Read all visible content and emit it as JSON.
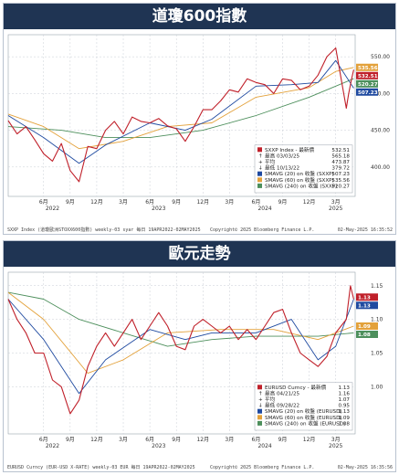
{
  "chart_data": [
    {
      "type": "line",
      "title": "道瓊600指數",
      "period": "weekly",
      "x_range": [
        "2022-02",
        "2025-04"
      ],
      "ylim": [
        360,
        580
      ],
      "yticks": [
        400,
        450,
        500,
        550
      ],
      "x_month_labels": [
        {
          "label": "6月",
          "date": "2022-06"
        },
        {
          "label": "9月",
          "date": "2022-09"
        },
        {
          "label": "12月",
          "date": "2022-12"
        },
        {
          "label": "3月",
          "date": "2023-03"
        },
        {
          "label": "6月",
          "date": "2023-06"
        },
        {
          "label": "9月",
          "date": "2023-09"
        },
        {
          "label": "12月",
          "date": "2023-12"
        },
        {
          "label": "3月",
          "date": "2024-03"
        },
        {
          "label": "6月",
          "date": "2024-06"
        },
        {
          "label": "9月",
          "date": "2024-09"
        },
        {
          "label": "12月",
          "date": "2024-12"
        },
        {
          "label": "3月",
          "date": "2025-03"
        }
      ],
      "x_year_labels": [
        {
          "label": "2022",
          "date": "2022-07"
        },
        {
          "label": "2023",
          "date": "2023-07"
        },
        {
          "label": "2024",
          "date": "2024-07"
        },
        {
          "label": "2025",
          "date": "2025-03"
        }
      ],
      "series": [
        {
          "name": "SXXP Index - 最新價",
          "color": "#c0202a",
          "points": [
            [
              "2022-02",
              463
            ],
            [
              "2022-03",
              445
            ],
            [
              "2022-04",
              455
            ],
            [
              "2022-05",
              437
            ],
            [
              "2022-06",
              418
            ],
            [
              "2022-07",
              408
            ],
            [
              "2022-08",
              432
            ],
            [
              "2022-09",
              395
            ],
            [
              "2022-10",
              380
            ],
            [
              "2022-11",
              428
            ],
            [
              "2022-12",
              425
            ],
            [
              "2023-01",
              450
            ],
            [
              "2023-02",
              462
            ],
            [
              "2023-03",
              445
            ],
            [
              "2023-04",
              468
            ],
            [
              "2023-05",
              462
            ],
            [
              "2023-06",
              460
            ],
            [
              "2023-07",
              466
            ],
            [
              "2023-08",
              456
            ],
            [
              "2023-09",
              452
            ],
            [
              "2023-10",
              435
            ],
            [
              "2023-11",
              455
            ],
            [
              "2023-12",
              478
            ],
            [
              "2024-01",
              478
            ],
            [
              "2024-02",
              490
            ],
            [
              "2024-03",
              505
            ],
            [
              "2024-04",
              502
            ],
            [
              "2024-05",
              520
            ],
            [
              "2024-06",
              515
            ],
            [
              "2024-07",
              512
            ],
            [
              "2024-08",
              500
            ],
            [
              "2024-09",
              520
            ],
            [
              "2024-10",
              518
            ],
            [
              "2024-11",
              505
            ],
            [
              "2024-12",
              510
            ],
            [
              "2025-01",
              525
            ],
            [
              "2025-02",
              550
            ],
            [
              "2025-03",
              562
            ],
            [
              "2025-04-07",
              480
            ],
            [
              "2025-04-15",
              500
            ],
            [
              "2025-04-25",
              520
            ],
            [
              "2025-05-02",
              532.51
            ]
          ]
        },
        {
          "name": "SMAVG (20) on 收盤 (SXXP)",
          "color": "#1f4aa0",
          "points": [
            [
              "2022-02",
              470
            ],
            [
              "2022-06",
              440
            ],
            [
              "2022-10",
              405
            ],
            [
              "2023-01",
              430
            ],
            [
              "2023-06",
              460
            ],
            [
              "2023-10",
              450
            ],
            [
              "2024-01",
              465
            ],
            [
              "2024-06",
              510
            ],
            [
              "2024-10",
              512
            ],
            [
              "2025-01",
              515
            ],
            [
              "2025-03",
              545
            ],
            [
              "2025-05-02",
              507.23
            ]
          ]
        },
        {
          "name": "SMAVG (60) on 收盤 (SXXP)",
          "color": "#e3a13a",
          "points": [
            [
              "2022-02",
              472
            ],
            [
              "2022-06",
              455
            ],
            [
              "2022-10",
              425
            ],
            [
              "2023-03",
              435
            ],
            [
              "2023-08",
              455
            ],
            [
              "2024-01",
              460
            ],
            [
              "2024-06",
              495
            ],
            [
              "2024-12",
              508
            ],
            [
              "2025-03",
              530
            ],
            [
              "2025-05-02",
              535.56
            ]
          ]
        },
        {
          "name": "SMAVG (240) on 收盤 (SXXP)",
          "color": "#4d8f5c",
          "points": [
            [
              "2022-02",
              455
            ],
            [
              "2022-08",
              450
            ],
            [
              "2023-01",
              440
            ],
            [
              "2023-06",
              440
            ],
            [
              "2023-12",
              450
            ],
            [
              "2024-06",
              470
            ],
            [
              "2024-12",
              495
            ],
            [
              "2025-05-02",
              520.27
            ]
          ]
        }
      ],
      "legend": {
        "placement": "bottom-right",
        "rows": [
          {
            "label": "SXXP Index - 最新價",
            "value": "532.51",
            "color": "#c0202a"
          },
          {
            "label": "最高 03/03/25",
            "value": "565.18",
            "symbol": "↑"
          },
          {
            "label": "平均",
            "value": "473.87",
            "symbol": "+"
          },
          {
            "label": "最低 10/13/22",
            "value": "379.72",
            "symbol": "↓"
          },
          {
            "label": "SMAVG (20)  on 收盤 (SXXP)",
            "value": "507.23",
            "color": "#1f4aa0"
          },
          {
            "label": "SMAVG (60)  on 收盤 (SXXP)",
            "value": "535.56",
            "color": "#e3a13a"
          },
          {
            "label": "SMAVG (240) on 收盤 (SXXP)",
            "value": "520.27",
            "color": "#4d8f5c"
          }
        ]
      },
      "value_tags": [
        {
          "value": "535.56",
          "y": 535.56,
          "color": "#e3a13a"
        },
        {
          "value": "532.51",
          "y": 532.51,
          "color": "#c0202a"
        },
        {
          "value": "520.27",
          "y": 520.27,
          "color": "#4d8f5c"
        },
        {
          "value": "507.23",
          "y": 507.23,
          "color": "#1f4aa0"
        }
      ],
      "footer_left": "SXXP Index (道瓊歐洲STOXX600指數) weekly-03 syar 每日 19APR2022-02MAY2025",
      "footer_mid": "Copyright© 2025 Bloomberg Finance L.P.",
      "footer_right": "02-May-2025 16:35:52"
    },
    {
      "type": "line",
      "title": "歐元走勢",
      "period": "weekly",
      "x_range": [
        "2022-02",
        "2025-04"
      ],
      "ylim": [
        0.93,
        1.17
      ],
      "yticks": [
        1.0,
        1.05,
        1.1,
        1.15
      ],
      "ytick_labels": [
        "1.00",
        "1.05",
        "1.10",
        "1.15"
      ],
      "x_month_labels": [
        {
          "label": "6月",
          "date": "2022-06"
        },
        {
          "label": "9月",
          "date": "2022-09"
        },
        {
          "label": "12月",
          "date": "2022-12"
        },
        {
          "label": "3月",
          "date": "2023-03"
        },
        {
          "label": "6月",
          "date": "2023-06"
        },
        {
          "label": "9月",
          "date": "2023-09"
        },
        {
          "label": "12月",
          "date": "2023-12"
        },
        {
          "label": "3月",
          "date": "2024-03"
        },
        {
          "label": "6月",
          "date": "2024-06"
        },
        {
          "label": "9月",
          "date": "2024-09"
        },
        {
          "label": "12月",
          "date": "2024-12"
        },
        {
          "label": "3月",
          "date": "2025-03"
        }
      ],
      "x_year_labels": [
        {
          "label": "2022",
          "date": "2022-07"
        },
        {
          "label": "2023",
          "date": "2023-07"
        },
        {
          "label": "2024",
          "date": "2024-07"
        },
        {
          "label": "2025",
          "date": "2025-03"
        }
      ],
      "series": [
        {
          "name": "EURUSD Curncy - 最新價",
          "color": "#c0202a",
          "points": [
            [
              "2022-02",
              1.13
            ],
            [
              "2022-03",
              1.1
            ],
            [
              "2022-04",
              1.08
            ],
            [
              "2022-05",
              1.05
            ],
            [
              "2022-06",
              1.05
            ],
            [
              "2022-07",
              1.01
            ],
            [
              "2022-08",
              1.0
            ],
            [
              "2022-09",
              0.96
            ],
            [
              "2022-10",
              0.98
            ],
            [
              "2022-11",
              1.03
            ],
            [
              "2022-12",
              1.06
            ],
            [
              "2023-01",
              1.08
            ],
            [
              "2023-02",
              1.06
            ],
            [
              "2023-03",
              1.08
            ],
            [
              "2023-04",
              1.1
            ],
            [
              "2023-05",
              1.07
            ],
            [
              "2023-06",
              1.09
            ],
            [
              "2023-07",
              1.11
            ],
            [
              "2023-08",
              1.09
            ],
            [
              "2023-09",
              1.06
            ],
            [
              "2023-10",
              1.055
            ],
            [
              "2023-11",
              1.09
            ],
            [
              "2023-12",
              1.1
            ],
            [
              "2024-01",
              1.09
            ],
            [
              "2024-02",
              1.08
            ],
            [
              "2024-03",
              1.09
            ],
            [
              "2024-04",
              1.07
            ],
            [
              "2024-05",
              1.085
            ],
            [
              "2024-06",
              1.07
            ],
            [
              "2024-07",
              1.09
            ],
            [
              "2024-08",
              1.11
            ],
            [
              "2024-09",
              1.115
            ],
            [
              "2024-10",
              1.08
            ],
            [
              "2024-11",
              1.05
            ],
            [
              "2024-12",
              1.04
            ],
            [
              "2025-01",
              1.03
            ],
            [
              "2025-02",
              1.045
            ],
            [
              "2025-03",
              1.08
            ],
            [
              "2025-04-07",
              1.1
            ],
            [
              "2025-04-21",
              1.15
            ],
            [
              "2025-05-02",
              1.13
            ]
          ]
        },
        {
          "name": "SMAVG (20) on 收盤 (EURUSD)",
          "color": "#1f4aa0",
          "points": [
            [
              "2022-02",
              1.13
            ],
            [
              "2022-06",
              1.07
            ],
            [
              "2022-10",
              0.99
            ],
            [
              "2023-01",
              1.04
            ],
            [
              "2023-06",
              1.085
            ],
            [
              "2023-10",
              1.07
            ],
            [
              "2024-01",
              1.08
            ],
            [
              "2024-06",
              1.08
            ],
            [
              "2024-10",
              1.1
            ],
            [
              "2025-01",
              1.04
            ],
            [
              "2025-03",
              1.06
            ],
            [
              "2025-05-02",
              1.13
            ]
          ]
        },
        {
          "name": "SMAVG (60) on 收盤 (EURUSD)",
          "color": "#e3a13a",
          "points": [
            [
              "2022-02",
              1.14
            ],
            [
              "2022-06",
              1.1
            ],
            [
              "2022-11",
              1.02
            ],
            [
              "2023-03",
              1.04
            ],
            [
              "2023-08",
              1.08
            ],
            [
              "2024-02",
              1.085
            ],
            [
              "2024-08",
              1.085
            ],
            [
              "2025-01",
              1.07
            ],
            [
              "2025-05-02",
              1.09
            ]
          ]
        },
        {
          "name": "SMAVG (240) on 收盤 (EURUSD)",
          "color": "#4d8f5c",
          "points": [
            [
              "2022-02",
              1.14
            ],
            [
              "2022-06",
              1.13
            ],
            [
              "2022-10",
              1.1
            ],
            [
              "2023-03",
              1.08
            ],
            [
              "2023-08",
              1.06
            ],
            [
              "2024-01",
              1.07
            ],
            [
              "2024-06",
              1.075
            ],
            [
              "2025-01",
              1.075
            ],
            [
              "2025-05-02",
              1.08
            ]
          ]
        }
      ],
      "legend": {
        "placement": "bottom-right",
        "rows": [
          {
            "label": "EURUSD Curncy - 最新價",
            "value": "1.13",
            "color": "#c0202a"
          },
          {
            "label": "最高 04/21/25",
            "value": "1.16",
            "symbol": "↑"
          },
          {
            "label": "平均",
            "value": "1.07",
            "symbol": "+"
          },
          {
            "label": "最低 09/28/22",
            "value": "0.95",
            "symbol": "↓"
          },
          {
            "label": "SMAVG (20)  on 收盤 (EURUSD)",
            "value": "1.13",
            "color": "#1f4aa0"
          },
          {
            "label": "SMAVG (60)  on 收盤 (EURUSD)",
            "value": "1.09",
            "color": "#e3a13a"
          },
          {
            "label": "SMAVG (240) on 收盤 (EURUSD)",
            "value": "1.08",
            "color": "#4d8f5c"
          }
        ]
      },
      "value_tags": [
        {
          "value": "1.13",
          "y": 1.133,
          "color": "#c0202a"
        },
        {
          "value": "1.13",
          "y": 1.127,
          "color": "#1f4aa0"
        },
        {
          "value": "1.09",
          "y": 1.09,
          "color": "#e3a13a"
        },
        {
          "value": "1.08",
          "y": 1.08,
          "color": "#4d8f5c"
        }
      ],
      "footer_left": "EURUSD Curncy (EUR-USD X-RATE) weekly-03 EUR 每日 19APR2022-02MAY2025",
      "footer_mid": "Copyright© 2025 Bloomberg Finance L.P.",
      "footer_right": "02-May-2025 16:35:56"
    }
  ]
}
